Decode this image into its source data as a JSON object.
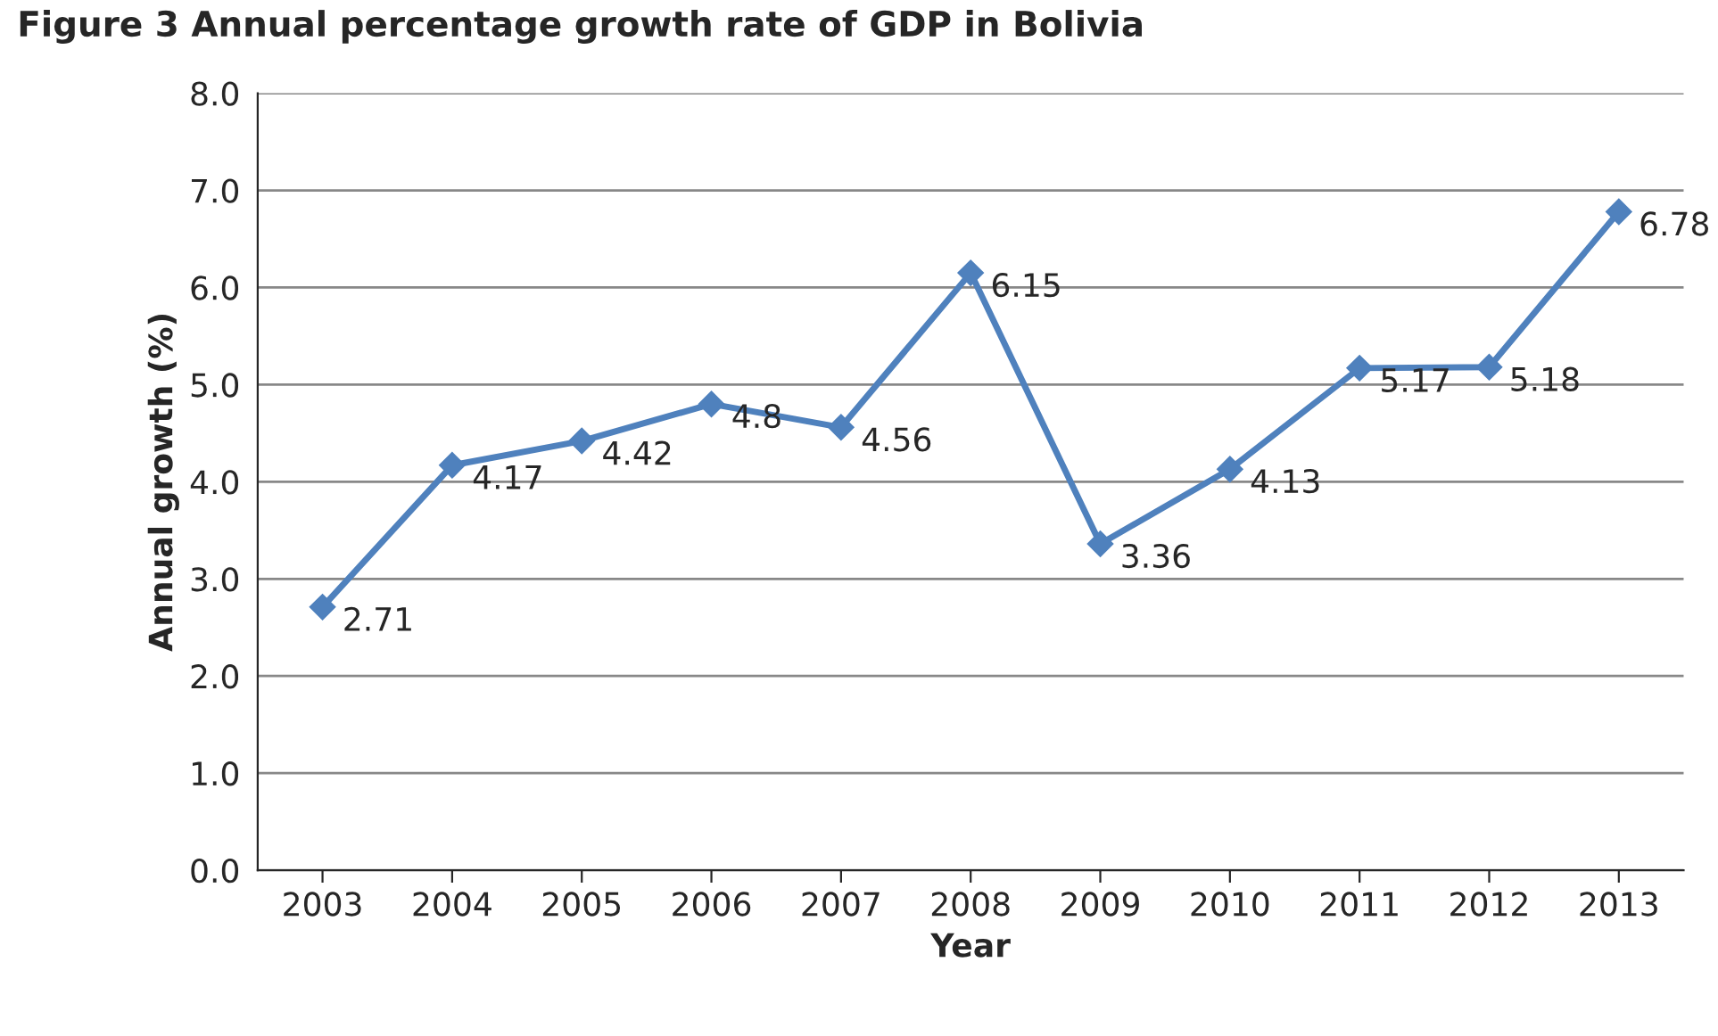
{
  "chart_data": {
    "type": "line",
    "title": "Figure 3 Annual percentage growth rate of GDP in Bolivia",
    "xlabel": "Year",
    "ylabel": "Annual growth (%)",
    "categories": [
      "2003",
      "2004",
      "2005",
      "2006",
      "2007",
      "2008",
      "2009",
      "2010",
      "2011",
      "2012",
      "2013"
    ],
    "series": [
      {
        "color": "#4f81bd",
        "values": [
          2.71,
          4.17,
          4.42,
          4.8,
          4.56,
          6.15,
          3.36,
          4.13,
          5.17,
          5.18,
          6.78
        ]
      }
    ],
    "ylim": [
      0,
      8
    ],
    "yticks": [
      {
        "value": 0,
        "label": "0.0"
      },
      {
        "value": 1,
        "label": "1.0"
      },
      {
        "value": 2,
        "label": "2.0"
      },
      {
        "value": 3,
        "label": "3.0"
      },
      {
        "value": 4,
        "label": "4.0"
      },
      {
        "value": 5,
        "label": "5.0"
      },
      {
        "value": 6,
        "label": "6.0"
      },
      {
        "value": 7,
        "label": "7.0"
      },
      {
        "value": 8,
        "label": "8.0"
      }
    ],
    "grid": "y",
    "marker": "diamond",
    "line_style": "solid",
    "data_labels": true,
    "legend": false
  }
}
